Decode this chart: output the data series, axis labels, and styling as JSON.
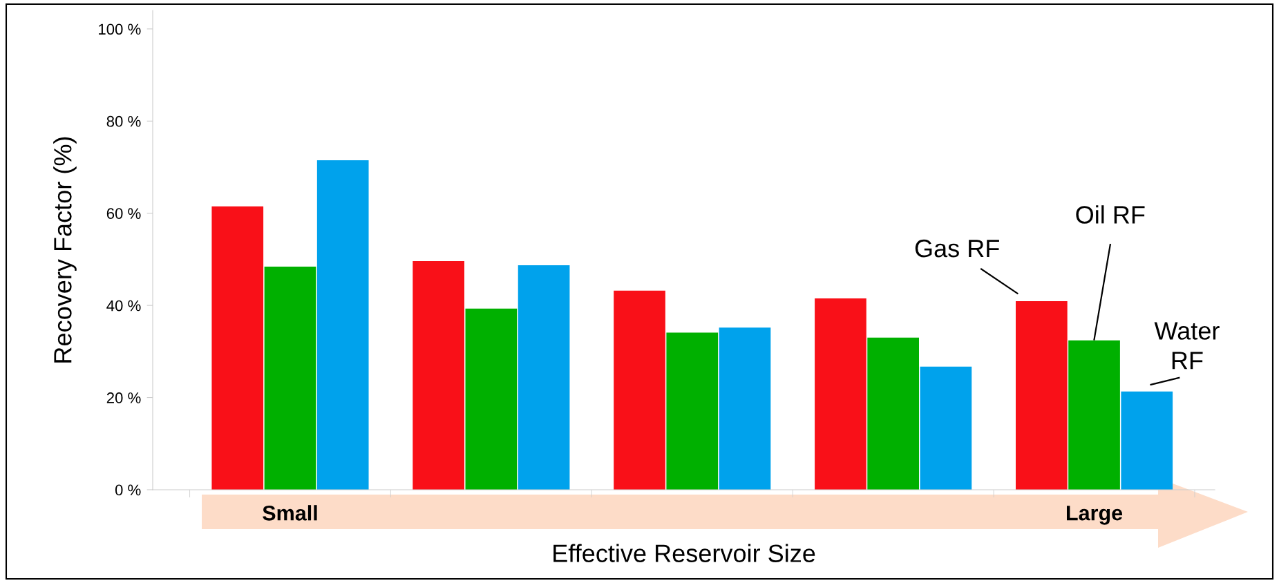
{
  "chart_data": {
    "type": "bar",
    "xlabel": "Effective Reservoir Size",
    "ylabel": "Recovery Factor (%)",
    "categories": [
      "Small",
      null,
      null,
      null,
      "Large"
    ],
    "series": [
      {
        "name": "Gas RF",
        "color": "#f91018",
        "values": [
          61.5,
          49.6,
          43.2,
          41.5,
          40.9
        ]
      },
      {
        "name": "Oil RF",
        "color": "#00b000",
        "values": [
          48.4,
          39.3,
          34.1,
          33.0,
          32.4
        ]
      },
      {
        "name": "Water\nRF",
        "color": "#00a2ec",
        "values": [
          71.5,
          48.7,
          35.2,
          26.7,
          21.3
        ]
      }
    ],
    "ylim": [
      0,
      104
    ],
    "yticks": [
      {
        "value": 0,
        "label": "0 %"
      },
      {
        "value": 20,
        "label": "20 %"
      },
      {
        "value": 40,
        "label": "40 %"
      },
      {
        "value": 60,
        "label": "60 %"
      },
      {
        "value": 80,
        "label": "80 %"
      },
      {
        "value": 100,
        "label": "100 %"
      }
    ],
    "grid": false,
    "legend": false
  }
}
